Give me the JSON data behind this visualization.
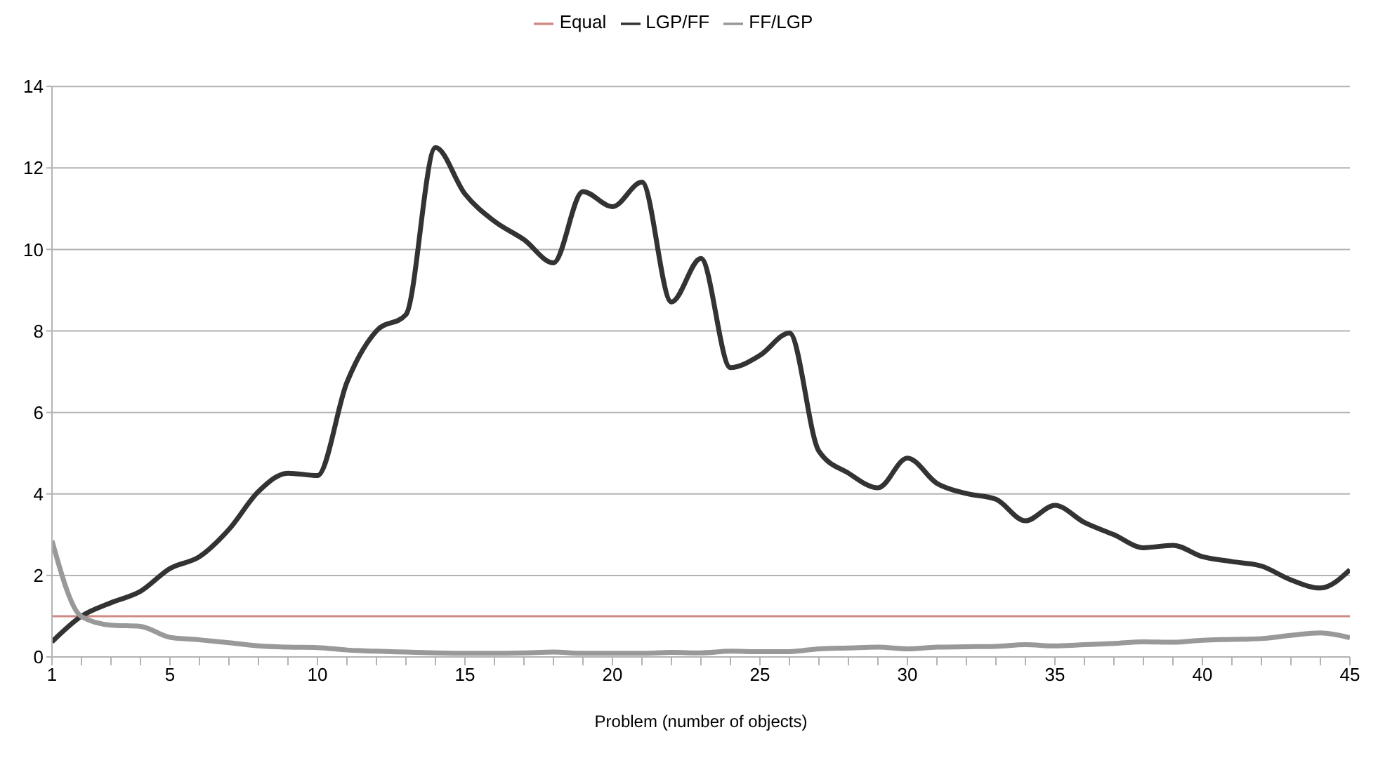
{
  "chart_data": {
    "type": "line",
    "xlabel": "Problem (number of objects)",
    "x": [
      1,
      2,
      3,
      4,
      5,
      6,
      7,
      8,
      9,
      10,
      11,
      12,
      13,
      14,
      15,
      16,
      17,
      18,
      19,
      20,
      21,
      22,
      23,
      24,
      25,
      26,
      27,
      28,
      29,
      30,
      31,
      32,
      33,
      34,
      35,
      36,
      37,
      38,
      39,
      40,
      41,
      42,
      43,
      44,
      45
    ],
    "series": [
      {
        "name": "Equal",
        "color": "#d08a86",
        "values": [
          1,
          1,
          1,
          1,
          1,
          1,
          1,
          1,
          1,
          1,
          1,
          1,
          1,
          1,
          1,
          1,
          1,
          1,
          1,
          1,
          1,
          1,
          1,
          1,
          1,
          1,
          1,
          1,
          1,
          1,
          1,
          1,
          1,
          1,
          1,
          1,
          1,
          1,
          1,
          1,
          1,
          1,
          1,
          1,
          1
        ]
      },
      {
        "name": "LGP/FF",
        "color": "#333333",
        "values": [
          0.37,
          1.0,
          1.33,
          1.61,
          2.17,
          2.46,
          3.13,
          4.06,
          4.51,
          4.45,
          6.74,
          8.0,
          8.4,
          12.5,
          11.36,
          10.69,
          10.24,
          9.67,
          11.42,
          11.05,
          11.65,
          8.71,
          9.78,
          7.1,
          7.4,
          7.95,
          5.05,
          4.51,
          4.15,
          4.88,
          4.26,
          4.01,
          3.87,
          3.34,
          3.72,
          3.3,
          3.0,
          2.68,
          2.74,
          2.46,
          2.34,
          2.23,
          1.89,
          1.69,
          2.14
        ]
      },
      {
        "name": "FF/LGP",
        "color": "#999999",
        "values": [
          2.85,
          0.99,
          0.78,
          0.75,
          0.48,
          0.42,
          0.35,
          0.27,
          0.24,
          0.23,
          0.17,
          0.14,
          0.12,
          0.1,
          0.09,
          0.09,
          0.1,
          0.12,
          0.09,
          0.09,
          0.09,
          0.11,
          0.1,
          0.14,
          0.13,
          0.13,
          0.2,
          0.22,
          0.24,
          0.2,
          0.24,
          0.25,
          0.26,
          0.3,
          0.27,
          0.3,
          0.33,
          0.37,
          0.36,
          0.41,
          0.43,
          0.45,
          0.53,
          0.59,
          0.47
        ]
      }
    ],
    "xlim": [
      1,
      45
    ],
    "xticks": [
      1,
      {
        "value": 2,
        "label": null
      },
      {
        "value": 3,
        "label": null
      },
      {
        "value": 4,
        "label": null
      },
      5,
      {
        "value": 6,
        "label": null
      },
      {
        "value": 7,
        "label": null
      },
      {
        "value": 8,
        "label": null
      },
      {
        "value": 9,
        "label": null
      },
      10,
      {
        "value": 11,
        "label": null
      },
      {
        "value": 12,
        "label": null
      },
      {
        "value": 13,
        "label": null
      },
      {
        "value": 14,
        "label": null
      },
      15,
      {
        "value": 16,
        "label": null
      },
      {
        "value": 17,
        "label": null
      },
      {
        "value": 18,
        "label": null
      },
      {
        "value": 19,
        "label": null
      },
      20,
      {
        "value": 21,
        "label": null
      },
      {
        "value": 22,
        "label": null
      },
      {
        "value": 23,
        "label": null
      },
      {
        "value": 24,
        "label": null
      },
      25,
      {
        "value": 26,
        "label": null
      },
      {
        "value": 27,
        "label": null
      },
      {
        "value": 28,
        "label": null
      },
      {
        "value": 29,
        "label": null
      },
      30,
      {
        "value": 31,
        "label": null
      },
      {
        "value": 32,
        "label": null
      },
      {
        "value": 33,
        "label": null
      },
      {
        "value": 34,
        "label": null
      },
      35,
      {
        "value": 36,
        "label": null
      },
      {
        "value": 37,
        "label": null
      },
      {
        "value": 38,
        "label": null
      },
      {
        "value": 39,
        "label": null
      },
      40,
      {
        "value": 41,
        "label": null
      },
      {
        "value": 42,
        "label": null
      },
      {
        "value": 43,
        "label": null
      },
      {
        "value": 44,
        "label": null
      },
      45
    ],
    "ylim": [
      0,
      14
    ],
    "yticks": [
      0,
      2,
      4,
      6,
      8,
      10,
      12,
      14
    ],
    "grid": "y",
    "legend": "top",
    "marker": "none",
    "line_style": "solid"
  }
}
